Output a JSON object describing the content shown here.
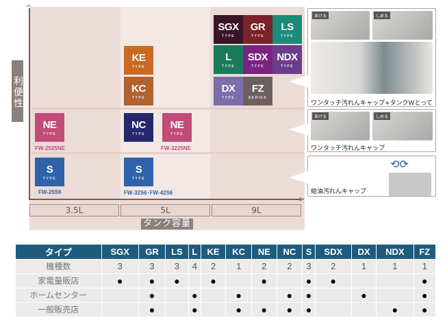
{
  "chart": {
    "y_label": "利便性",
    "x_title": "タンク容量",
    "capacities": [
      "3.5L",
      "5L",
      "9L"
    ],
    "tiles": [
      {
        "name": "SGX",
        "sub": "TYPE",
        "color": "#3a1429"
      },
      {
        "name": "GR",
        "sub": "TYPE",
        "color": "#7b2229"
      },
      {
        "name": "LS",
        "sub": "TYPE",
        "color": "#1a8c79"
      },
      {
        "name": "L",
        "sub": "TYPE",
        "color": "#1a7b5b"
      },
      {
        "name": "SDX",
        "sub": "TYPE",
        "color": "#7a2383"
      },
      {
        "name": "NDX",
        "sub": "TYPE",
        "color": "#6b3d8c"
      },
      {
        "name": "DX",
        "sub": "TYPE",
        "color": "#7c6dab"
      },
      {
        "name": "FZ",
        "sub": "SERIES",
        "color": "#6e5f5f"
      },
      {
        "name": "KE",
        "sub": "TYPE",
        "color": "#c96922"
      },
      {
        "name": "KC",
        "sub": "TYPE",
        "color": "#b0632f"
      },
      {
        "name": "NE",
        "sub": "TYPE",
        "color": "#c24c79"
      },
      {
        "name": "NC",
        "sub": "TYPE",
        "color": "#25296b"
      },
      {
        "name": "NE",
        "sub": "TYPE",
        "color": "#c24c79"
      },
      {
        "name": "S",
        "sub": "TYPE",
        "color": "#2f63a9"
      },
      {
        "name": "S",
        "sub": "TYPE",
        "color": "#2f63a9"
      }
    ],
    "models": {
      "ne_small": "FW-2525NE",
      "ne_mid": "FW-3225NE",
      "s_small": "FW-25S6",
      "s_mid": "FW-32S6･FW-42S6"
    }
  },
  "panels": [
    {
      "open": "あける",
      "close": "しめる",
      "caption": "ワンタッチ汚れんキャップ+タンクWとって"
    },
    {
      "open": "あける",
      "close": "しめる",
      "caption": "ワンタッチ汚れんキャップ"
    },
    {
      "caption": "給油汚れんキャップ"
    }
  ],
  "table": {
    "header": "タイプ",
    "types": [
      "SGX",
      "GR",
      "LS",
      "L",
      "KE",
      "KC",
      "NE",
      "NC",
      "S",
      "SDX",
      "DX",
      "NDX",
      "FZ"
    ],
    "rows": [
      {
        "label": "機種数",
        "values": [
          "3",
          "3",
          "3",
          "4",
          "2",
          "1",
          "2",
          "2",
          "3",
          "2",
          "1",
          "1",
          "1"
        ]
      },
      {
        "label": "家電量販店",
        "dots": [
          1,
          1,
          1,
          0,
          1,
          0,
          1,
          0,
          1,
          1,
          0,
          0,
          1
        ]
      },
      {
        "label": "ホームセンター",
        "dots": [
          0,
          1,
          0,
          1,
          0,
          1,
          0,
          1,
          1,
          0,
          1,
          0,
          1
        ]
      },
      {
        "label": "一般販売店",
        "dots": [
          0,
          1,
          0,
          1,
          0,
          1,
          1,
          1,
          1,
          0,
          0,
          1,
          1
        ]
      }
    ],
    "dot": "●"
  }
}
